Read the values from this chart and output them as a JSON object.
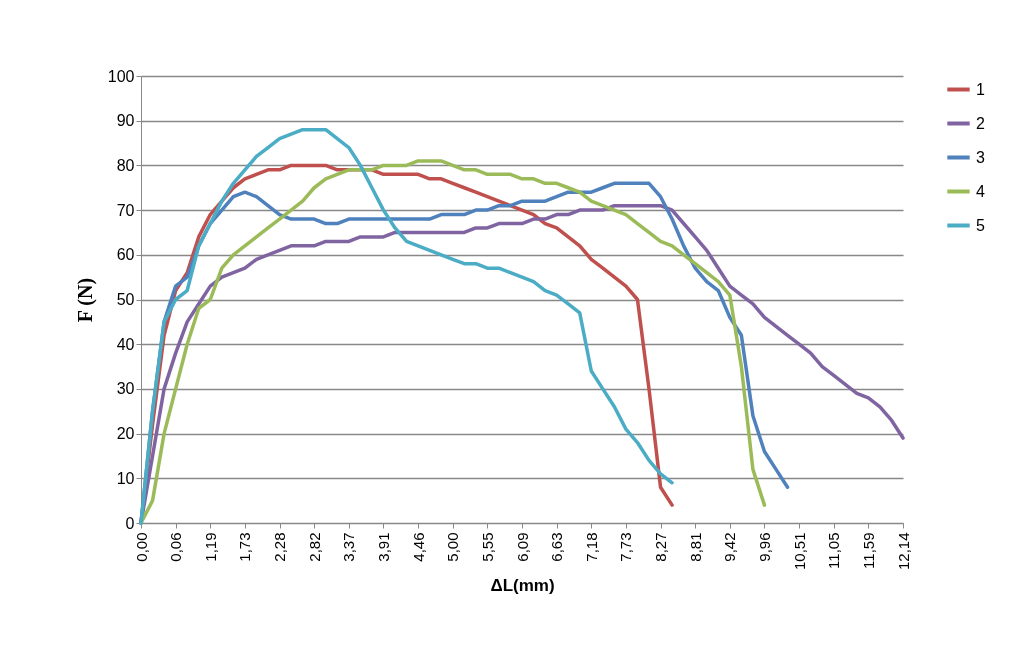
{
  "chart_data": {
    "type": "line",
    "xlabel": "ΔL(mm)",
    "ylabel": "F (N)",
    "categories": [
      "0,00",
      null,
      null,
      "0,06",
      null,
      null,
      "1,19",
      null,
      null,
      "1,73",
      null,
      null,
      "2,28",
      null,
      null,
      "2,82",
      null,
      null,
      "3,37",
      null,
      null,
      "3,91",
      null,
      null,
      "4,46",
      null,
      null,
      "5,00",
      null,
      null,
      "5,55",
      null,
      null,
      "6,09",
      null,
      null,
      "6,63",
      null,
      null,
      "7,18",
      null,
      null,
      "7,73",
      null,
      null,
      "8,27",
      null,
      null,
      "8,81",
      null,
      null,
      "9,42",
      null,
      null,
      "9,96",
      null,
      null,
      "10,51",
      null,
      null,
      "11,05",
      null,
      null,
      "11,59",
      null,
      null,
      "12,14"
    ],
    "ylim": [
      0,
      100
    ],
    "yticks": [
      0,
      10,
      20,
      30,
      40,
      50,
      60,
      70,
      80,
      90,
      100
    ],
    "grid": "y",
    "legend": "right",
    "line_style": "solid",
    "marker": "none",
    "series": [
      {
        "name": "1",
        "color": "#c0504d",
        "values": [
          0,
          22,
          42,
          52,
          56,
          64,
          69,
          72,
          75,
          77,
          78,
          79,
          79,
          80,
          80,
          80,
          80,
          79,
          79,
          79,
          79,
          78,
          78,
          78,
          78,
          77,
          77,
          76,
          75,
          74,
          73,
          72,
          71,
          70,
          69,
          67,
          66,
          64,
          62,
          59,
          57,
          55,
          53,
          50,
          30,
          8,
          4,
          null,
          null,
          null,
          null,
          null,
          null,
          null,
          null,
          null,
          null,
          null,
          null,
          null,
          null,
          null,
          null,
          null,
          null,
          null,
          null
        ]
      },
      {
        "name": "2",
        "color": "#8064a2",
        "values": [
          0,
          15,
          30,
          38,
          45,
          49,
          53,
          55,
          56,
          57,
          59,
          60,
          61,
          62,
          62,
          62,
          63,
          63,
          63,
          64,
          64,
          64,
          65,
          65,
          65,
          65,
          65,
          65,
          65,
          66,
          66,
          67,
          67,
          67,
          68,
          68,
          69,
          69,
          70,
          70,
          70,
          71,
          71,
          71,
          71,
          71,
          70,
          67,
          64,
          61,
          57,
          53,
          51,
          49,
          46,
          44,
          42,
          40,
          38,
          35,
          33,
          31,
          29,
          28,
          26,
          23,
          19
        ]
      },
      {
        "name": "3",
        "color": "#4f81bd",
        "values": [
          0,
          25,
          45,
          53,
          55,
          62,
          67,
          70,
          73,
          74,
          73,
          71,
          69,
          68,
          68,
          68,
          67,
          67,
          68,
          68,
          68,
          68,
          68,
          68,
          68,
          68,
          69,
          69,
          69,
          70,
          70,
          71,
          71,
          72,
          72,
          72,
          73,
          74,
          74,
          74,
          75,
          76,
          76,
          76,
          76,
          73,
          68,
          62,
          57,
          54,
          52,
          46,
          42,
          24,
          16,
          12,
          8,
          null,
          null,
          null,
          null,
          null,
          null,
          null,
          null,
          null,
          null
        ]
      },
      {
        "name": "4",
        "color": "#9bbb59",
        "values": [
          0,
          5,
          20,
          30,
          40,
          48,
          50,
          57,
          60,
          62,
          64,
          66,
          68,
          70,
          72,
          75,
          77,
          78,
          79,
          79,
          79,
          80,
          80,
          80,
          81,
          81,
          81,
          80,
          79,
          79,
          78,
          78,
          78,
          77,
          77,
          76,
          76,
          75,
          74,
          72,
          71,
          70,
          69,
          67,
          65,
          63,
          62,
          60,
          58,
          56,
          54,
          51,
          35,
          12,
          4,
          null,
          null,
          null,
          null,
          null,
          null,
          null,
          null,
          null,
          null,
          null,
          null
        ]
      },
      {
        "name": "5",
        "color": "#4bacc6",
        "values": [
          0,
          25,
          45,
          50,
          52,
          62,
          67,
          72,
          76,
          79,
          82,
          84,
          86,
          87,
          88,
          88,
          88,
          86,
          84,
          80,
          75,
          70,
          66,
          63,
          62,
          61,
          60,
          59,
          58,
          58,
          57,
          57,
          56,
          55,
          54,
          52,
          51,
          49,
          47,
          34,
          30,
          26,
          21,
          18,
          14,
          11,
          9,
          null,
          null,
          null,
          null,
          null,
          null,
          null,
          null,
          null,
          null,
          null,
          null,
          null,
          null,
          null,
          null,
          null,
          null,
          null,
          null
        ]
      }
    ]
  }
}
